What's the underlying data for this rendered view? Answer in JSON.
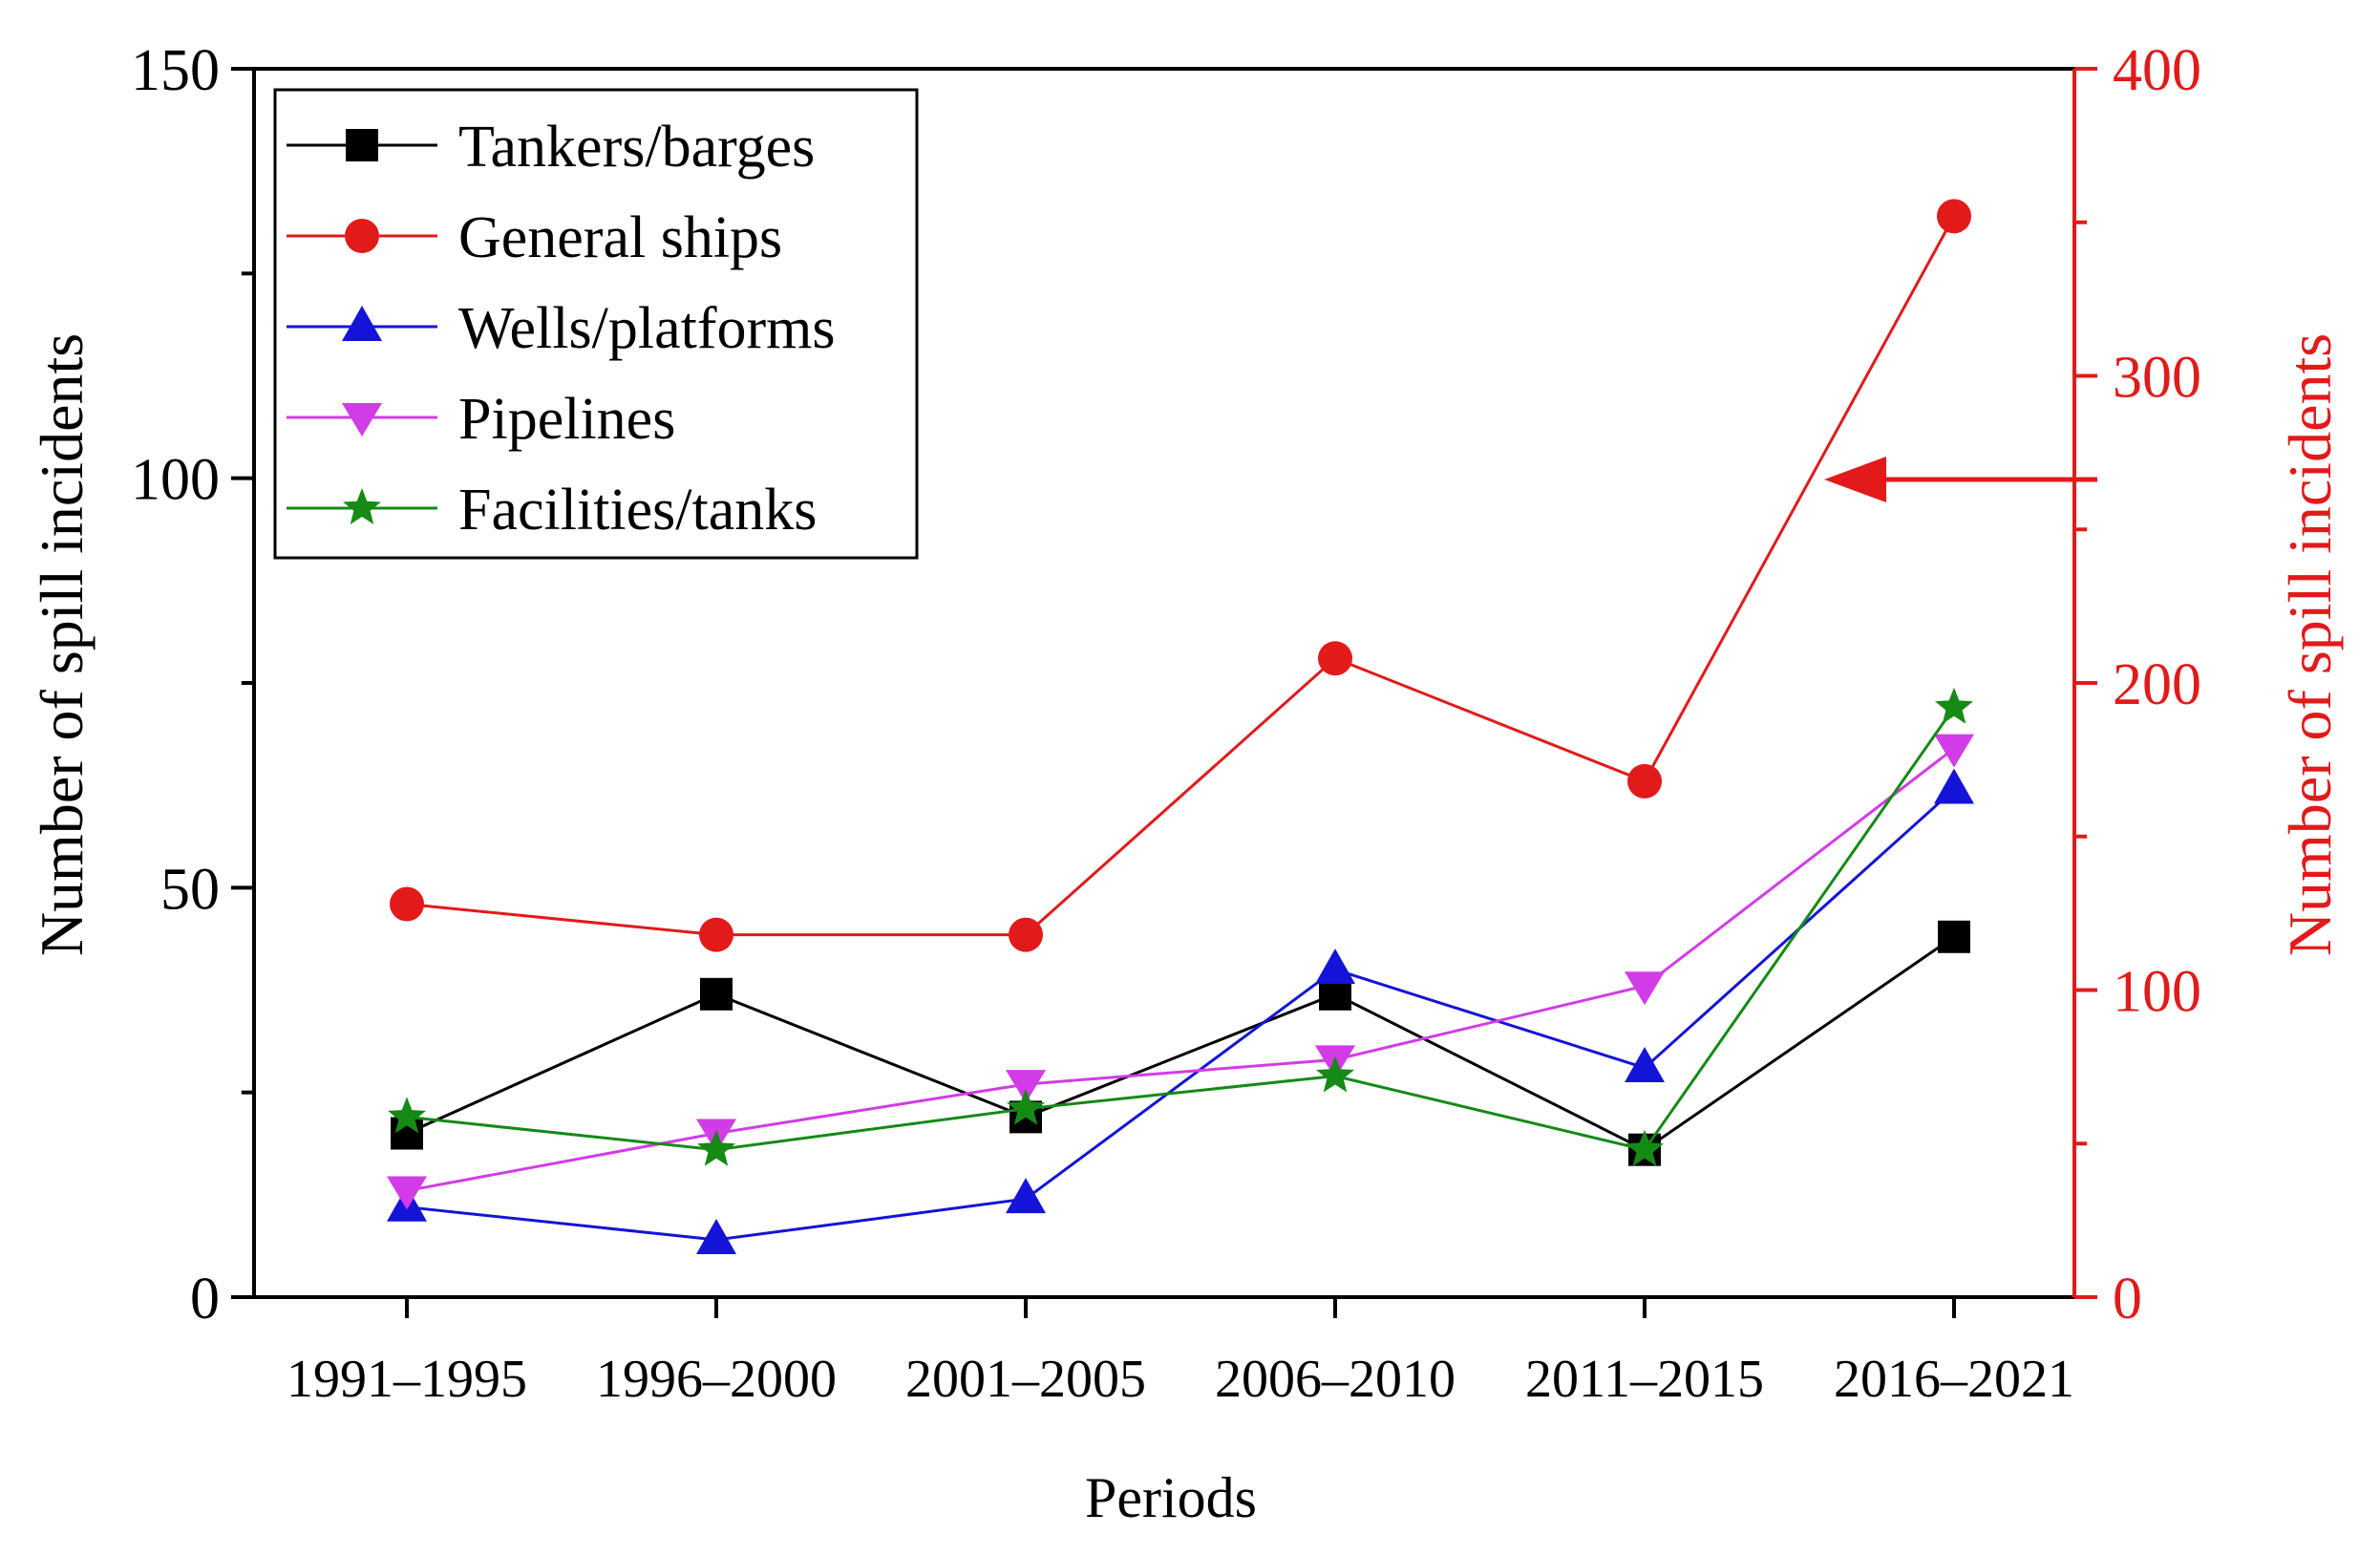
{
  "chart_data": {
    "type": "line",
    "xlabel": "Periods",
    "ylabel": "Number of spill incidents",
    "y2label": "Number of spill incidents",
    "categories": [
      "1991–1995",
      "1996–2000",
      "2001–2005",
      "2006–2010",
      "2011–2015",
      "2016–2021"
    ],
    "ylim": [
      0,
      150
    ],
    "y2lim": [
      0,
      400
    ],
    "yticks": [
      0,
      50,
      100,
      150
    ],
    "y2ticks": [
      0,
      100,
      200,
      300,
      400
    ],
    "grid": false,
    "legend_position": "top-left",
    "series": [
      {
        "name": "Tankers/barges",
        "axis": "left",
        "marker": "square",
        "color": "#000000",
        "values": [
          20,
          37,
          22,
          37,
          18,
          44
        ]
      },
      {
        "name": "General ships",
        "axis": "right",
        "marker": "circle",
        "color": "#e21a1a",
        "values": [
          128,
          118,
          118,
          208,
          168,
          352
        ]
      },
      {
        "name": "Wells/platforms",
        "axis": "left",
        "marker": "triangle-up",
        "color": "#1414d8",
        "values": [
          11,
          7,
          12,
          40,
          28,
          62
        ]
      },
      {
        "name": "Pipelines",
        "axis": "left",
        "marker": "triangle-down",
        "color": "#d23ce6",
        "values": [
          13,
          20,
          26,
          29,
          38,
          67
        ]
      },
      {
        "name": "Facilities/tanks",
        "axis": "left",
        "marker": "star",
        "color": "#158a15",
        "values": [
          22,
          18,
          23,
          27,
          18,
          72
        ]
      }
    ],
    "annotations": [
      {
        "type": "arrow",
        "direction": "left",
        "color": "#e21a1a",
        "note": "points to right axis"
      }
    ]
  }
}
